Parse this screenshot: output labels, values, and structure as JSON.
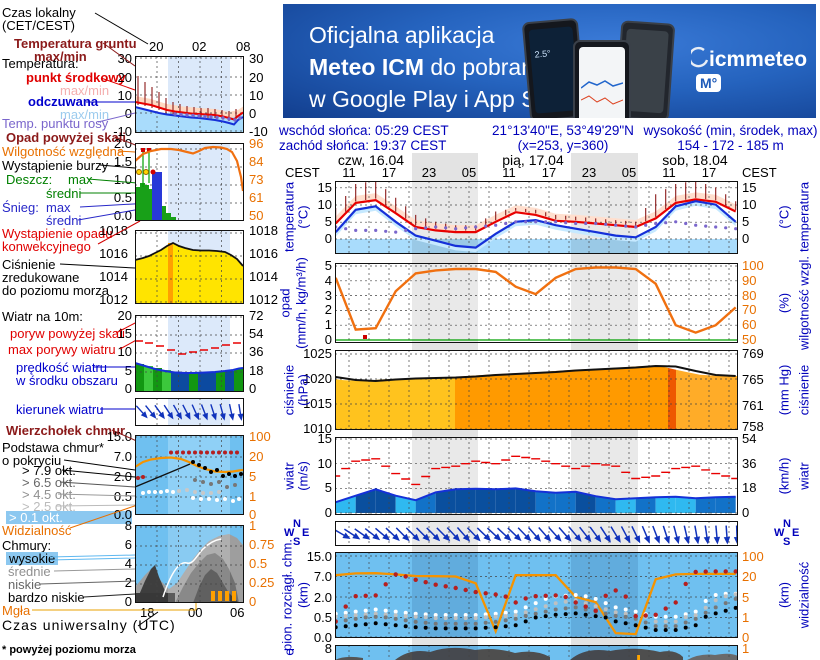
{
  "banner": {
    "line1": "Oficjalna aplikacja",
    "line2_bold": "Meteo ICM",
    "line2_rest": " do pobrania",
    "line3": "w Google Play i App Store",
    "phone_temp": "2.5°",
    "logo_text": "icmmeteo",
    "logo_badge": "M°"
  },
  "info": {
    "sunrise": "wschód słońca: 05:29 CEST",
    "sunset": "zachód słońca: 19:37 CEST",
    "coords": "21°13'40\"E, 53°49'29\"N",
    "grid": "(x=253, y=360)",
    "alt_label": "wysokość (min, środek, max)",
    "alt_values": "154 - 172 - 185 m"
  },
  "timeline": {
    "tz_left": "CEST",
    "tz_right": "CEST",
    "days": [
      "czw, 16.04",
      "pią, 17.04",
      "sob, 18.04"
    ],
    "hours": [
      "11",
      "17",
      "23",
      "05",
      "11",
      "17",
      "23",
      "05",
      "11",
      "17"
    ]
  },
  "sidebar": {
    "czas_lokalny": "Czas lokalny",
    "cet": "(CET/CEST)",
    "temp_gruntu": "Temperatura gruntu",
    "temp_gruntu2": "max/min",
    "temperatura": "Temperatura:",
    "punkt": "punkt środkowy",
    "maxmin1": "max/min",
    "odczuwana": "odczuwana",
    "maxmin2": "max/min",
    "rosy": "Temp. punktu rosy",
    "opad_skala": "Opad powyżej skali",
    "wilgotnosc": "Wilgotność względna",
    "burza": "Wystąpienie burzy",
    "deszcz": "Deszcz:",
    "deszcz_max": "max",
    "deszcz_sredni": "średni",
    "snieg": "Śnieg:",
    "snieg_max": "max",
    "snieg_sredni": "średni",
    "konw1": "Wystąpienie opadu",
    "konw2": "konwekcyjnego",
    "cis1": "Ciśnienie",
    "cis2": "zredukowane",
    "cis3": "do poziomu morza",
    "wiatr10": "Wiatr na 10m:",
    "poryw": "poryw powyżej skali",
    "maxporywy": "max porywy wiatru",
    "pred1": "prędkość wiatru",
    "pred2": "w środku obszaru",
    "kierunek": "kierunek wiatru",
    "wierzch": "Wierzchołek chmur",
    "pods1": "Podstawa chmur*",
    "pods2": "o pokryciu",
    "okt": [
      "> 7.9 okt.",
      "> 6.5 okt.",
      "> 4.5 okt.",
      "> 2.5 okt.",
      "> 0.1 okt."
    ],
    "widz": "Widzialność",
    "chmury_lbl": "Chmury:",
    "chmury_typy": [
      "wysokie",
      "średnie",
      "niskie",
      "bardzo niskie"
    ],
    "mgla": "Mgła",
    "utc": "Czas uniwersalny (UTC)",
    "foot": "* powyżej poziomu morza",
    "mini_axes": {
      "temp_hours": [
        "20",
        "02",
        "08"
      ],
      "temp_scale": [
        "30",
        "20",
        "10",
        "0",
        "-10"
      ],
      "opad_scale_l": [
        "2.0",
        "1.5",
        "1.0",
        "0.5",
        "0.0"
      ],
      "opad_scale_r": [
        "96",
        "84",
        "73",
        "61",
        "50"
      ],
      "cis_scale": [
        "1018",
        "1016",
        "1014",
        "1012"
      ],
      "wiatr_scale_l": [
        "20",
        "15",
        "10",
        "5",
        "0"
      ],
      "wiatr_scale_r": [
        "72",
        "54",
        "36",
        "18",
        "0"
      ],
      "cloud_scale_l": [
        "15.0",
        "7.0",
        "2.0",
        "0.5",
        "0.0"
      ],
      "cloud_scale_r": [
        "100",
        "20",
        "5",
        "1",
        "0"
      ],
      "sky_scale_l": [
        "8",
        "6",
        "4",
        "2",
        "0"
      ],
      "sky_scale_r": [
        "1",
        "0.75",
        "0.5",
        "0.25",
        "0"
      ],
      "utc_hours": [
        "18",
        "00",
        "06"
      ]
    }
  },
  "panels": {
    "temperatura": {
      "label": "temperatura",
      "unit": "(°C)",
      "right_label": "temperatura",
      "right_unit": "(°C)",
      "left_ticks": [
        "15",
        "10",
        "5",
        "0"
      ],
      "right_ticks": [
        "15",
        "10",
        "5",
        "0"
      ]
    },
    "opad": {
      "label": "opad",
      "unit": "(mm/h, kg/m³/h)",
      "right_label": "wilgotność wzgl.",
      "right_unit": "(%)",
      "left_ticks": [
        "5",
        "4",
        "3",
        "2",
        "1",
        "0"
      ],
      "right_ticks": [
        "100",
        "90",
        "80",
        "70",
        "60",
        "50"
      ]
    },
    "cisnienie": {
      "label": "ciśnienie",
      "unit": "(hPa)",
      "right_label": "ciśnienie",
      "right_unit": "(mm Hg)",
      "left_ticks": [
        "1025",
        "1020",
        "1015",
        "1010"
      ],
      "right_ticks": [
        "769",
        "765",
        "761",
        "758"
      ]
    },
    "wiatr": {
      "label": "wiatr",
      "unit": "(m/s)",
      "right_label": "wiatr",
      "right_unit": "(km/h)",
      "left_ticks": [
        "15",
        "10",
        "5",
        "0"
      ],
      "right_ticks": [
        "54",
        "36",
        "18",
        "0"
      ]
    },
    "pion": {
      "label": "pion. rozciągł. chm.",
      "unit": "(km)",
      "right_label": "widzialność",
      "right_unit": "(km)",
      "left_ticks": [
        "15.0",
        "7.0",
        "2.0",
        "0.5",
        "0.0"
      ],
      "right_ticks": [
        "100",
        "20",
        "5",
        "1",
        "0"
      ]
    },
    "cut": {
      "left_tick": "8",
      "right_tick": "1",
      "label_fragment": "e"
    }
  },
  "compass": {
    "n": "N",
    "e": "E",
    "s": "S",
    "w": "W"
  },
  "chart_data": [
    {
      "id": "time",
      "type": "axis",
      "x_unit": "hours from czw 16.04 09:00 CEST",
      "x": [
        0,
        3,
        6,
        9,
        12,
        15,
        18,
        21,
        24,
        27,
        30,
        33,
        36,
        39,
        42,
        45,
        48,
        51,
        54,
        57,
        60
      ]
    },
    {
      "id": "temperatura",
      "type": "line",
      "ylabel": "temperatura (°C)",
      "ylim": [
        -4.5,
        16.5
      ],
      "series": [
        {
          "name": "punkt środkowy",
          "color": "#E80000",
          "values": [
            4.5,
            10.5,
            11.3,
            7.5,
            3.5,
            2.5,
            2.0,
            2.0,
            5.0,
            7.8,
            7.0,
            5.3,
            5.0,
            4.5,
            4.0,
            3.5,
            6.0,
            10.5,
            11.5,
            10.8,
            8.0
          ]
        },
        {
          "name": "odczuwana",
          "color": "#1530D8",
          "values": [
            2.0,
            8.5,
            9.5,
            5.0,
            1.0,
            -0.5,
            -2.0,
            -2.5,
            1.5,
            5.0,
            5.5,
            4.0,
            3.0,
            2.0,
            1.0,
            0.5,
            3.5,
            9.5,
            11.0,
            10.0,
            5.0
          ]
        },
        {
          "name": "temp. punktu rosy",
          "color": "#7A66CC",
          "values": [
            3.5,
            2.5,
            2.5,
            2.0,
            3.0,
            3.5,
            3.0,
            3.5,
            4.0,
            5.0,
            5.0,
            5.0,
            4.5,
            4.5,
            4.0,
            3.5,
            4.5,
            5.0,
            4.0,
            3.5,
            3.0
          ]
        },
        {
          "name": "temperatura gruntu max",
          "color": "#8B1A1A",
          "values": [
            9,
            16,
            17,
            12,
            7,
            5,
            4,
            4,
            8,
            9,
            8.5,
            7,
            6.5,
            6,
            5.5,
            5,
            13,
            16,
            17,
            15,
            11
          ]
        }
      ]
    },
    {
      "id": "wilgotnosc",
      "type": "line",
      "ylabel": "wilgotność wzgl. (%)",
      "ylim": [
        50,
        102
      ],
      "series": [
        {
          "name": "wilgotność względna",
          "color": "#F07010",
          "values": [
            92,
            57,
            58,
            83,
            95,
            97,
            98,
            98,
            96,
            86,
            81,
            92,
            98,
            99,
            99,
            98,
            88,
            60,
            55,
            60,
            72
          ]
        }
      ]
    },
    {
      "id": "cisnienie",
      "type": "area",
      "ylabel": "ciśnienie (hPa)",
      "ylim": [
        1009,
        1025.8
      ],
      "series": [
        {
          "name": "ciśnienie zredukowane",
          "color": "#111111",
          "values": [
            1020.4,
            1019.8,
            1019.6,
            1019.9,
            1020.1,
            1020.2,
            1020.3,
            1020.5,
            1020.8,
            1021.0,
            1021.2,
            1021.4,
            1021.7,
            1021.9,
            1022.1,
            1022.3,
            1022.6,
            1022.5,
            1021.6,
            1020.8,
            1020.6
          ]
        }
      ]
    },
    {
      "id": "wiatr",
      "type": "area",
      "ylabel": "wiatr (m/s)",
      "ylim": [
        0,
        15.4
      ],
      "series": [
        {
          "name": "prędkość wiatru",
          "color": "#1530D8",
          "values": [
            2.2,
            3.5,
            4.8,
            3.5,
            2.6,
            4.2,
            4.8,
            4.9,
            4.8,
            5.0,
            4.4,
            4.1,
            4.3,
            3.4,
            2.8,
            3.0,
            3.2,
            3.3,
            3.0,
            3.2,
            3.3
          ]
        },
        {
          "name": "max porywy wiatru",
          "color": "#E80000",
          "values": [
            7.5,
            10.5,
            11.0,
            8.0,
            5.8,
            9.0,
            9.5,
            10.5,
            10.0,
            11.5,
            11.0,
            10.0,
            9.0,
            10.0,
            9.5,
            7.0,
            7.5,
            9.0,
            9.5,
            8.0,
            7.0
          ]
        }
      ]
    },
    {
      "id": "kierunek",
      "type": "vector",
      "name": "kierunek wiatru (stopnie, skąd wieje)",
      "values": [
        300,
        305,
        310,
        315,
        315,
        315,
        318,
        315,
        312,
        315,
        320,
        318,
        320,
        325,
        330,
        335,
        340,
        345,
        350,
        355,
        358
      ]
    },
    {
      "id": "pion_chmur",
      "type": "scatter",
      "ylabel": "pion. rozciągł. chm. (km)",
      "yticks": [
        0,
        0.5,
        2,
        7,
        15
      ],
      "series": [
        {
          "name": "wierzchołek chmur",
          "color": "#B51F1F",
          "values": [
            0.4,
            2.2,
            2.4,
            7.8,
            6.2,
            5.0,
            4.2,
            3.2,
            2.6,
            1.6,
            2.2,
            2.4,
            1.6,
            1.0,
            3.6,
            0.6,
            0.7,
            1.6,
            8.8,
            9.0,
            9.0
          ]
        },
        {
          "name": "podstawa chmur",
          "color": "#000000",
          "values": [
            0.25,
            0.3,
            0.35,
            0.3,
            0.25,
            0.22,
            0.22,
            0.22,
            0.25,
            0.3,
            0.5,
            0.7,
            0.8,
            0.6,
            0.4,
            0.3,
            0.18,
            0.18,
            0.3,
            0.8,
            1.2
          ]
        }
      ]
    },
    {
      "id": "widzialnosc",
      "type": "line",
      "ylabel": "widzialność (km)",
      "yticks": [
        0,
        1,
        5,
        20,
        100
      ],
      "series": [
        {
          "name": "widzialność",
          "color": "#F59300",
          "values": [
            25,
            32,
            33,
            28,
            22,
            21,
            20,
            15,
            0.3,
            25,
            25,
            25,
            5,
            4,
            0.2,
            0.15,
            18,
            28,
            30,
            30,
            30
          ]
        }
      ]
    }
  ]
}
